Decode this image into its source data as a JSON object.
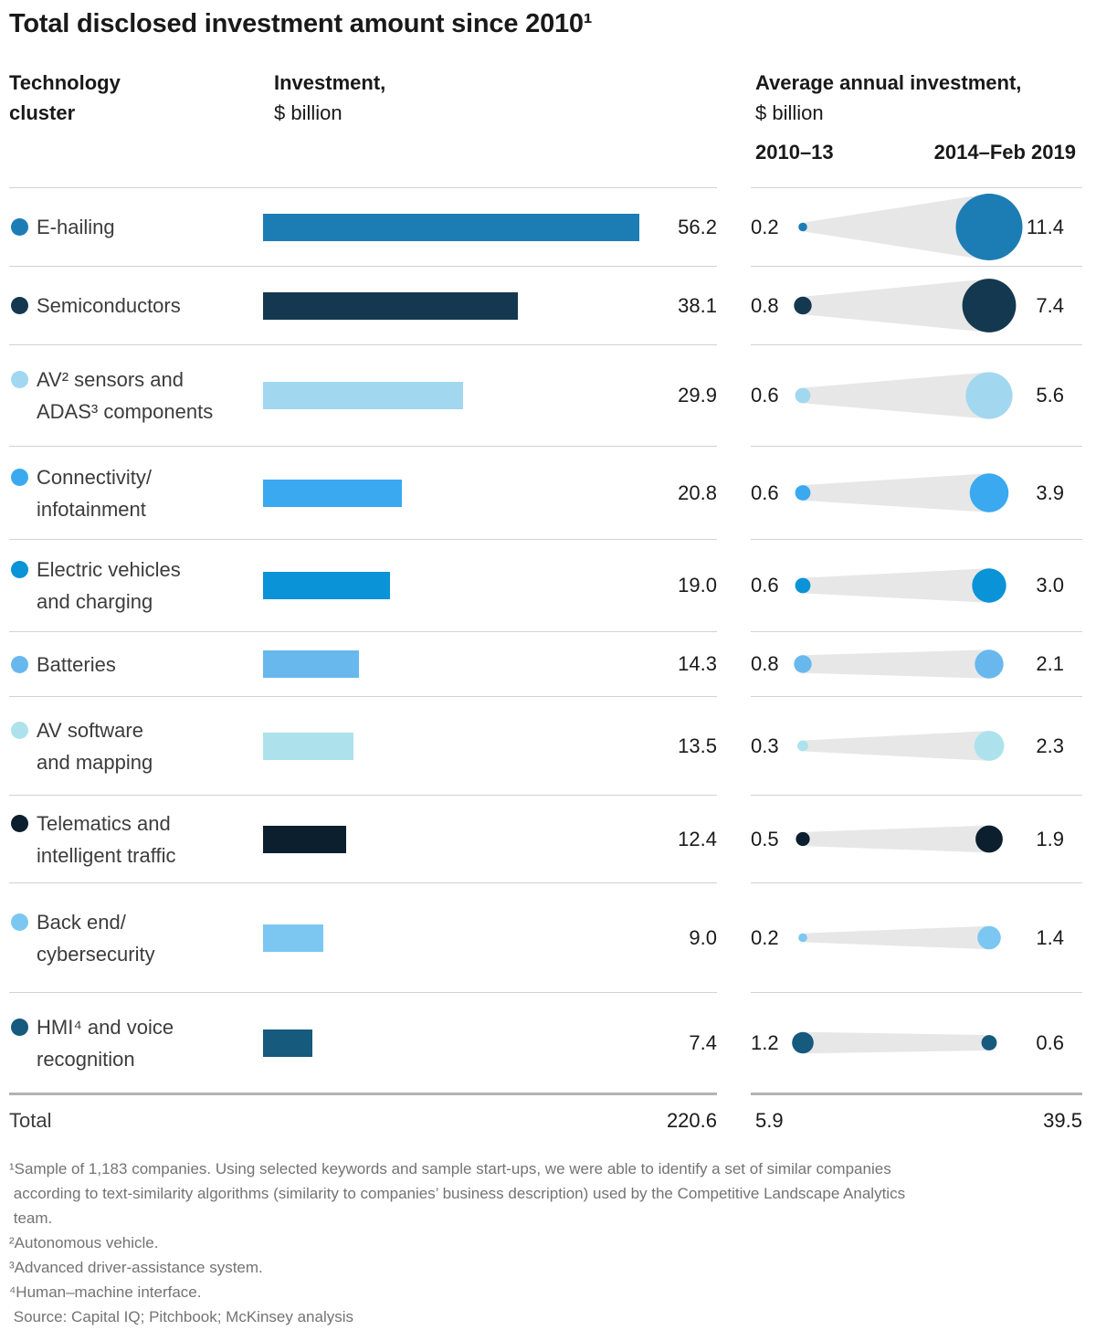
{
  "title": "Total disclosed investment amount since 2010¹",
  "columns": {
    "cluster_line1": "Technology",
    "cluster_line2": "cluster",
    "investment_bold": "Investment,",
    "investment_unit": "$ billion",
    "avg_bold": "Average annual investment,",
    "avg_unit": " $ billion",
    "period1": "2010–13",
    "period2": "2014–Feb 2019"
  },
  "colors": {
    "funnel": "#e7e7e7",
    "separator": "#d2d2d2",
    "total_border": "#b3b3b3"
  },
  "rows": [
    {
      "label_lines": [
        "E-hailing"
      ],
      "color": "#1c7db5",
      "investment": "56.2",
      "avg_2010_13": "0.2",
      "avg_2014_feb2019": "11.4"
    },
    {
      "label_lines": [
        "Semiconductors"
      ],
      "color": "#14384f",
      "investment": "38.1",
      "avg_2010_13": "0.8",
      "avg_2014_feb2019": "7.4"
    },
    {
      "label_lines": [
        "AV² sensors and",
        "ADAS³ components"
      ],
      "color": "#a2d7f0",
      "investment": "29.9",
      "avg_2010_13": "0.6",
      "avg_2014_feb2019": "5.6"
    },
    {
      "label_lines": [
        "Connectivity/",
        "infotainment"
      ],
      "color": "#3aa9f0",
      "investment": "20.8",
      "avg_2010_13": "0.6",
      "avg_2014_feb2019": "3.9"
    },
    {
      "label_lines": [
        "Electric vehicles",
        "and charging"
      ],
      "color": "#0a93d6",
      "investment": "19.0",
      "avg_2010_13": "0.6",
      "avg_2014_feb2019": "3.0"
    },
    {
      "label_lines": [
        "Batteries"
      ],
      "color": "#68b8ee",
      "investment": "14.3",
      "avg_2010_13": "0.8",
      "avg_2014_feb2019": "2.1"
    },
    {
      "label_lines": [
        "AV software",
        "and mapping"
      ],
      "color": "#ade2ed",
      "investment": "13.5",
      "avg_2010_13": "0.3",
      "avg_2014_feb2019": "2.3"
    },
    {
      "label_lines": [
        "Telematics and",
        "intelligent traffic"
      ],
      "color": "#0b1f2e",
      "investment": "12.4",
      "avg_2010_13": "0.5",
      "avg_2014_feb2019": "1.9"
    },
    {
      "label_lines": [
        "Back end/",
        "cybersecurity"
      ],
      "color": "#7cc7f2",
      "investment": "9.0",
      "avg_2010_13": "0.2",
      "avg_2014_feb2019": "1.4"
    },
    {
      "label_lines": [
        "HMI⁴ and voice",
        "recognition"
      ],
      "color": "#165a7d",
      "investment": "7.4",
      "avg_2010_13": "1.2",
      "avg_2014_feb2019": "0.6"
    }
  ],
  "total": {
    "label": "Total",
    "investment": "220.6",
    "avg_2010_13": "5.9",
    "avg_2014_feb2019": "39.5"
  },
  "footnotes": [
    "¹Sample of 1,183 companies. Using selected keywords and sample start-ups, we were able to identify a set of similar companies\n according to text-similarity algorithms (similarity to companies’ business description) used by the Competitive Landscape Analytics\n team.",
    "²Autonomous vehicle.",
    "³Advanced driver-assistance system.",
    "⁴Human–machine interface.",
    " Source: Capital IQ; Pitchbook; McKinsey analysis"
  ],
  "chart_data": {
    "type": "bar",
    "title": "Total disclosed investment amount since 2010",
    "categories": [
      "E-hailing",
      "Semiconductors",
      "AV sensors and ADAS components",
      "Connectivity/infotainment",
      "Electric vehicles and charging",
      "Batteries",
      "AV software and mapping",
      "Telematics and intelligent traffic",
      "Back end/cybersecurity",
      "HMI and voice recognition"
    ],
    "series": [
      {
        "name": "Investment, $ billion",
        "values": [
          56.2,
          38.1,
          29.9,
          20.8,
          19.0,
          14.3,
          13.5,
          12.4,
          9.0,
          7.4
        ]
      },
      {
        "name": "Average annual investment 2010–13, $ billion",
        "values": [
          0.2,
          0.8,
          0.6,
          0.6,
          0.6,
          0.8,
          0.3,
          0.5,
          0.2,
          1.2
        ]
      },
      {
        "name": "Average annual investment 2014–Feb 2019, $ billion",
        "values": [
          11.4,
          7.4,
          5.6,
          3.9,
          3.0,
          2.1,
          2.3,
          1.9,
          1.4,
          0.6
        ]
      }
    ],
    "totals": {
      "investment": 220.6,
      "avg_2010_13": 5.9,
      "avg_2014_feb2019": 39.5
    },
    "xlabel": "Investment, $ billion",
    "ylabel": "Technology cluster",
    "legend_position": "column-headers",
    "grid": false
  }
}
